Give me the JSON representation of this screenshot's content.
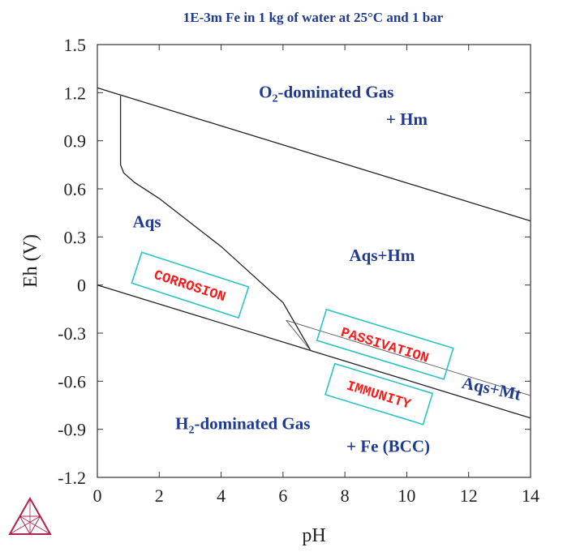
{
  "chart_data": {
    "type": "line",
    "title": "1E-3m Fe in 1 kg of water at 25°C and 1 bar",
    "xlabel": "pH",
    "ylabel": "Eh (V)",
    "xlim": [
      0,
      14
    ],
    "ylim": [
      -1.2,
      1.5
    ],
    "x_ticks": [
      "0",
      "2",
      "4",
      "6",
      "8",
      "10",
      "12",
      "14"
    ],
    "y_ticks": [
      "1.5",
      "1.2",
      "0.9",
      "0.6",
      "0.3",
      "0",
      "-0.3",
      "-0.6",
      "-0.9",
      "-1.2"
    ],
    "boundaries": [
      {
        "points": [
          [
            0,
            1.23
          ],
          [
            14,
            0.4
          ]
        ]
      },
      {
        "points": [
          [
            0,
            0.0
          ],
          [
            14,
            -0.83
          ]
        ]
      },
      {
        "points": [
          [
            0.75,
            1.18
          ],
          [
            0.75,
            0.75
          ],
          [
            0.85,
            0.7
          ],
          [
            1.2,
            0.64
          ],
          [
            2,
            0.54
          ],
          [
            4,
            0.24
          ],
          [
            6,
            -0.11
          ],
          [
            6.9,
            -0.41
          ]
        ]
      },
      {
        "points": [
          [
            6.1,
            -0.22
          ],
          [
            14,
            -0.69
          ]
        ]
      },
      {
        "points": [
          [
            6.1,
            -0.22
          ],
          [
            6.9,
            -0.41
          ]
        ]
      }
    ],
    "regions": [
      {
        "label": "O",
        "sub": "2",
        "label_rest": "-dominated Gas",
        "x": 7.4,
        "y": 1.17
      },
      {
        "label": "+ Hm",
        "x": 10.0,
        "y": 1.0
      },
      {
        "label": "Aqs",
        "x": 1.6,
        "y": 0.36
      },
      {
        "label": "Aqs+Hm",
        "x": 9.2,
        "y": 0.15
      },
      {
        "label": "Aqs+Mt",
        "x": 12.7,
        "y": -0.68
      },
      {
        "label": "H",
        "sub": "2",
        "label_rest": "-dominated Gas",
        "x": 4.7,
        "y": -0.9
      },
      {
        "label": "+ Fe (BCC)",
        "x": 9.4,
        "y": -1.04
      }
    ],
    "boxed_labels": [
      {
        "text": "CORROSION",
        "x": 3.0,
        "y": 0.0,
        "angle": 18
      },
      {
        "text": "PASSIVATION",
        "x": 9.3,
        "y": -0.37,
        "angle": 17
      },
      {
        "text": "IMMUNITY",
        "x": 9.1,
        "y": -0.68,
        "angle": 17
      }
    ],
    "grid": false
  }
}
